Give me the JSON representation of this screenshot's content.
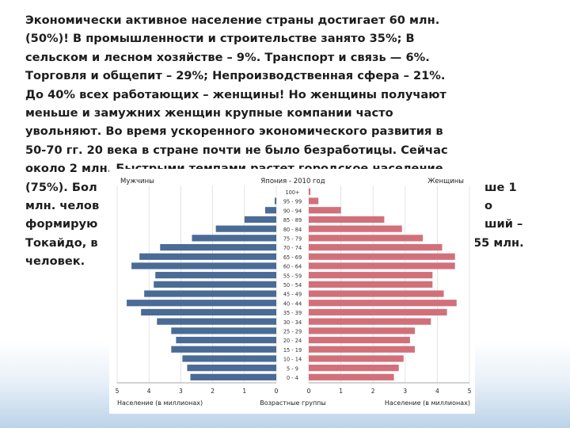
{
  "slide": {
    "lines": [
      "Экономически активное население страны достигает 60 млн.",
      "(50%)! В промышленности и строительстве занято 35%; В",
      "сельском и лесном хозяйстве – 9%. Транспорт и связь — 6%.",
      "Торговля и общепит – 29%; Непроизводственная сфера – 21%.",
      "До 40% всех работающих – женщины! Но женщины получают",
      "меньше и замужних женщин крупные компании часто",
      "увольняют. Во время ускоренного экономического развития в",
      "50-70 гг. 20 века в стране почти не было безработицы. Сейчас",
      "около 2 млн. Быстрыми темпами растет городское население",
      "(75%). Бол",
      "ше 1",
      "млн. челов",
      "о",
      "формирую",
      "ший –",
      "Токайдо, в",
      "55 млн.",
      "человек."
    ]
  },
  "chart_data": {
    "type": "bar",
    "orientation": "horizontal",
    "title": "Япония - 2010 год",
    "left_label": "Мужчины",
    "right_label": "Женщины",
    "categories": [
      "100+",
      "95 - 99",
      "90 - 94",
      "85 - 89",
      "80 - 84",
      "75 - 79",
      "70 - 74",
      "65 - 69",
      "60 - 64",
      "55 - 59",
      "50 - 54",
      "45 - 49",
      "40 - 44",
      "35 - 39",
      "30 - 34",
      "25 - 29",
      "20 - 24",
      "15 - 19",
      "10 - 14",
      "5 - 9",
      "0 - 4"
    ],
    "series": [
      {
        "name": "Мужчины",
        "color": "#4a6b96",
        "values": [
          0.0,
          0.05,
          0.35,
          1.0,
          1.9,
          2.65,
          3.65,
          4.3,
          4.55,
          3.8,
          3.85,
          4.15,
          4.7,
          4.25,
          3.75,
          3.3,
          3.15,
          3.3,
          2.95,
          2.8,
          2.7
        ]
      },
      {
        "name": "Женщины",
        "color": "#d2707a",
        "values": [
          0.05,
          0.3,
          1.0,
          2.35,
          2.9,
          3.55,
          4.15,
          4.55,
          4.55,
          3.85,
          3.85,
          4.2,
          4.6,
          4.3,
          3.8,
          3.3,
          3.15,
          3.3,
          2.95,
          2.8,
          2.65
        ]
      }
    ],
    "xlim": [
      0,
      5
    ],
    "ticks": [
      "5",
      "4",
      "3",
      "2",
      "1",
      "0",
      "0",
      "1",
      "2",
      "3",
      "4",
      "5"
    ],
    "xlabel_left": "Население (в миллионах)",
    "xlabel_center": "Возрастные группы",
    "xlabel_right": "Население (в миллионах)",
    "grid": true
  }
}
